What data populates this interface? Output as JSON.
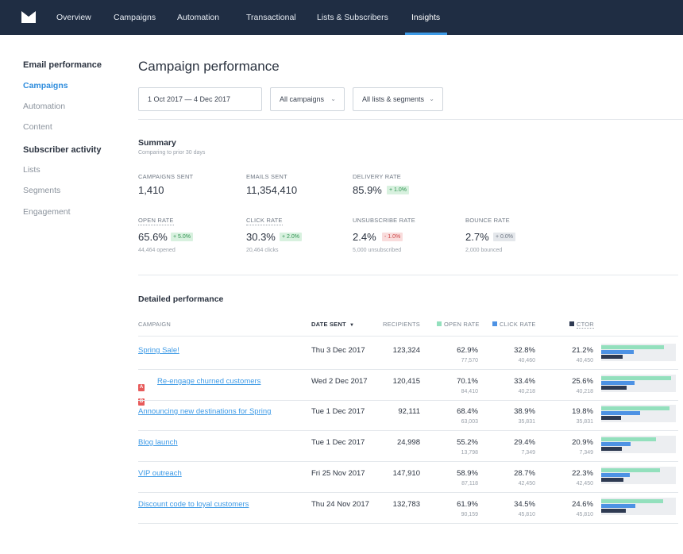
{
  "nav": {
    "items": [
      "Overview",
      "Campaigns",
      "Automation",
      "Transactional",
      "Lists & Subscribers",
      "Insights"
    ],
    "active": "Insights"
  },
  "sidebar": {
    "email_heading": "Email performance",
    "email_items": [
      "Campaigns",
      "Automation",
      "Content"
    ],
    "subscriber_heading": "Subscriber activity",
    "subscriber_items": [
      "Lists",
      "Segments",
      "Engagement"
    ]
  },
  "main": {
    "title": "Campaign performance",
    "date_range": "1 Oct 2017  —  4 Dec 2017",
    "campaign_filter": "All campaigns",
    "list_filter": "All lists & segments"
  },
  "summary": {
    "title": "Summary",
    "subtitle": "Comparing to prior 30 days",
    "metrics": [
      {
        "label": "CAMPAIGNS SENT",
        "value": "1,410"
      },
      {
        "label": "EMAILS SENT",
        "value": "11,354,410"
      },
      {
        "label": "DELIVERY RATE",
        "value": "85.9%",
        "change": "+ 1.0%"
      },
      {
        "label": "OPEN RATE",
        "value": "65.6%",
        "change": "+ 5.0%",
        "sub": "44,464 opened"
      },
      {
        "label": "CLICK RATE",
        "value": "30.3%",
        "change": "+ 2.0%",
        "sub": "20,464 clicks"
      },
      {
        "label": "UNSUBSCRIBE RATE",
        "value": "2.4%",
        "change": "- 1.0%",
        "sub": "5,000 unsubscribed"
      },
      {
        "label": "BOUNCE RATE",
        "value": "2.7%",
        "change": "+ 0.0%",
        "sub": "2,000 bounced"
      }
    ]
  },
  "detailed": {
    "title": "Detailed performance",
    "columns": [
      "CAMPAIGN",
      "DATE SENT",
      "RECIPIENTS",
      "OPEN RATE",
      "CLICK RATE",
      "CTOR"
    ],
    "ab_labels": [
      "A",
      "B"
    ],
    "rows": [
      {
        "campaign": "Spring Sale!",
        "ab": false,
        "date": "Thu 3 Dec 2017",
        "recipients": "123,324",
        "open": "62.9%",
        "open_sub": "77,570",
        "click": "32.8%",
        "click_sub": "40,460",
        "ctor": "21.2%",
        "ctor_sub": "40,450",
        "open_val": 62.9,
        "click_val": 32.8,
        "ctor_val": 21.2
      },
      {
        "campaign": "Re-engage churned customers",
        "ab": true,
        "date": "Wed 2 Dec 2017",
        "recipients": "120,415",
        "open": "70.1%",
        "open_sub": "84,410",
        "click": "33.4%",
        "click_sub": "40,218",
        "ctor": "25.6%",
        "ctor_sub": "40,218",
        "open_val": 70.1,
        "click_val": 33.4,
        "ctor_val": 25.6
      },
      {
        "campaign": "Announcing new destinations for Spring",
        "ab": false,
        "date": "Tue 1 Dec 2017",
        "recipients": "92,111",
        "open": "68.4%",
        "open_sub": "63,003",
        "click": "38.9%",
        "click_sub": "35,831",
        "ctor": "19.8%",
        "ctor_sub": "35,831",
        "open_val": 68.4,
        "click_val": 38.9,
        "ctor_val": 19.8
      },
      {
        "campaign": "Blog launch",
        "ab": false,
        "date": "Tue 1 Dec 2017",
        "recipients": "24,998",
        "open": "55.2%",
        "open_sub": "13,798",
        "click": "29.4%",
        "click_sub": "7,349",
        "ctor": "20.9%",
        "ctor_sub": "7,349",
        "open_val": 55.2,
        "click_val": 29.4,
        "ctor_val": 20.9
      },
      {
        "campaign": "VIP outreach",
        "ab": false,
        "date": "Fri 25 Nov 2017",
        "recipients": "147,910",
        "open": "58.9%",
        "open_sub": "87,118",
        "click": "28.7%",
        "click_sub": "42,450",
        "ctor": "22.3%",
        "ctor_sub": "42,450",
        "open_val": 58.9,
        "click_val": 28.7,
        "ctor_val": 22.3
      },
      {
        "campaign": "Discount code to loyal customers",
        "ab": false,
        "date": "Thu 24 Nov 2017",
        "recipients": "132,783",
        "open": "61.9%",
        "open_sub": "90,159",
        "click": "34.5%",
        "click_sub": "45,810",
        "ctor": "24.6%",
        "ctor_sub": "45,810",
        "open_val": 61.9,
        "click_val": 34.5,
        "ctor_val": 24.6
      }
    ]
  },
  "colors": {
    "nav_bg": "#1f2d43",
    "accent": "#3d9ae6",
    "open_rate": "#93e0bd",
    "click_rate": "#4d92e4",
    "ctor": "#2e3a52",
    "positive": "#2f9350",
    "negative": "#cc4545"
  },
  "icons": {
    "logo": "mailbox-logo-icon",
    "sort": "sort-desc-icon",
    "dropdown": "chevron-down-icon"
  }
}
